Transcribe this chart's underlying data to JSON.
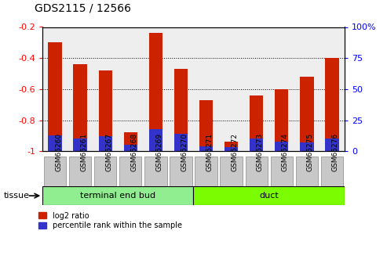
{
  "title": "GDS2115 / 12566",
  "samples": [
    "GSM65260",
    "GSM65261",
    "GSM65267",
    "GSM65268",
    "GSM65269",
    "GSM65270",
    "GSM65271",
    "GSM65272",
    "GSM65273",
    "GSM65274",
    "GSM65275",
    "GSM65276"
  ],
  "log2_ratio": [
    -0.3,
    -0.44,
    -0.48,
    -0.88,
    -0.24,
    -0.47,
    -0.67,
    -0.94,
    -0.64,
    -0.6,
    -0.52,
    -0.4
  ],
  "percentile_rank": [
    13,
    10,
    12,
    5,
    18,
    14,
    4,
    3,
    10,
    8,
    7,
    10
  ],
  "tissue_groups": [
    {
      "label": "terminal end bud",
      "start": 0,
      "end": 5,
      "color": "#90ee90"
    },
    {
      "label": "duct",
      "start": 6,
      "end": 11,
      "color": "#7cfc00"
    }
  ],
  "bar_color_red": "#cc2200",
  "bar_color_blue": "#3333cc",
  "bar_width": 0.55,
  "ylim_left": [
    -1.0,
    -0.2
  ],
  "ylim_right": [
    0,
    100
  ],
  "yticks_left": [
    -1.0,
    -0.8,
    -0.6,
    -0.4,
    -0.2
  ],
  "yticks_right": [
    0,
    25,
    50,
    75,
    100
  ],
  "left_tick_labels": [
    "-1",
    "-0.8",
    "-0.6",
    "-0.4",
    "-0.2"
  ],
  "right_tick_labels": [
    "0",
    "25",
    "50",
    "75",
    "100%"
  ],
  "grid_color": "#000000",
  "legend_red": "log2 ratio",
  "legend_blue": "percentile rank within the sample",
  "tissue_label": "tissue",
  "background_color": "#ffffff",
  "plot_bg": "#eeeeee"
}
